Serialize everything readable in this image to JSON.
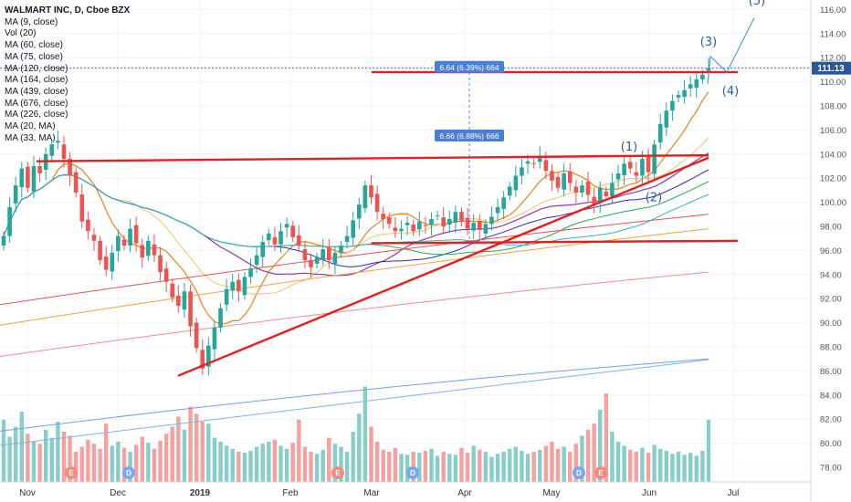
{
  "legend": {
    "title": "WALMART INC, D, Cboe BZX",
    "items": [
      "MA (9, close)",
      "Vol (20)",
      "MA (60, close)",
      "MA (75, close)",
      "MA (120, close)",
      "MA (164, close)",
      "MA (439, close)",
      "MA (676, close)",
      "MA (226, close)",
      "MA (20, MA)",
      "MA (33, MA)"
    ]
  },
  "price_tag": "111.13",
  "measures": [
    {
      "label": "6.64 (6.39%) 664"
    },
    {
      "label": "6.66 (6.88%) 666"
    }
  ],
  "waves": [
    "(1)",
    "(2)",
    "(3)",
    "(4)",
    "(5)"
  ],
  "events": [
    "E",
    "D",
    "E",
    "D",
    "D",
    "E"
  ],
  "colors": {
    "up": "#26a69a",
    "down": "#ef5350",
    "trend": "#e81e1e",
    "price_line": "#2a5aa8",
    "tag": "#2b5797"
  },
  "chart_data": {
    "type": "candlestick",
    "title": "WALMART INC, D, Cboe BZX",
    "ylim": [
      77,
      117
    ],
    "ticks": [
      "78.00",
      "80.00",
      "82.00",
      "84.00",
      "86.00",
      "88.00",
      "90.00",
      "92.00",
      "94.00",
      "96.00",
      "98.00",
      "100.00",
      "102.00",
      "104.00",
      "106.00",
      "108.00",
      "110.00",
      "112.00",
      "114.00",
      "116.00"
    ],
    "x_labels": [
      "Nov",
      "Dec",
      "2019",
      "Feb",
      "Mar",
      "Apr",
      "May",
      "Jun",
      "Jul"
    ],
    "last_price": 111.13,
    "closes": [
      97.2,
      99.6,
      101.4,
      102.8,
      101.2,
      103.0,
      102.4,
      104.0,
      104.8,
      105.1,
      103.6,
      102.2,
      100.8,
      98.4,
      97.6,
      96.8,
      95.2,
      94.4,
      95.8,
      97.2,
      96.4,
      97.8,
      96.6,
      95.4,
      96.8,
      95.6,
      94.2,
      93.4,
      92.1,
      91.4,
      92.6,
      89.7,
      87.9,
      86.2,
      88.1,
      89.6,
      91.2,
      92.8,
      93.4,
      92.6,
      93.8,
      94.5,
      95.6,
      96.7,
      97.4,
      96.5,
      97.6,
      98.2,
      97.1,
      96.4,
      95.2,
      94.6,
      95.4,
      96.1,
      95.2,
      95.8,
      96.4,
      97.2,
      98.5,
      99.8,
      101.4,
      100.4,
      99.2,
      98.6,
      98.2,
      97.6,
      97.8,
      98.3,
      97.6,
      98.4,
      98.1,
      98.6,
      98.9,
      98.0,
      98.6,
      99.2,
      98.4,
      97.8,
      98.3,
      97.7,
      98.2,
      98.8,
      99.6,
      100.4,
      101.3,
      102.2,
      102.9,
      103.4,
      103.2,
      103.8,
      102.6,
      101.8,
      101.2,
      102.4,
      101.6,
      100.8,
      101.4,
      100.6,
      99.8,
      101.2,
      100.5,
      101.6,
      102.4,
      103.2,
      102.8,
      102.2,
      103.6,
      102.5,
      104.8,
      106.5,
      107.6,
      108.4,
      108.9,
      109.3,
      109.8,
      110.2,
      110.6,
      111.13
    ],
    "volume_relative": [
      0.62,
      0.45,
      0.55,
      0.7,
      0.48,
      0.4,
      0.38,
      0.52,
      0.44,
      0.6,
      0.5,
      0.46,
      0.3,
      0.35,
      0.42,
      0.38,
      0.33,
      0.58,
      0.36,
      0.4,
      0.34,
      0.3,
      0.37,
      0.45,
      0.39,
      0.33,
      0.41,
      0.48,
      0.55,
      0.65,
      0.52,
      0.75,
      0.68,
      0.6,
      0.58,
      0.44,
      0.4,
      0.36,
      0.33,
      0.3,
      0.29,
      0.31,
      0.35,
      0.38,
      0.4,
      0.42,
      0.36,
      0.33,
      0.39,
      0.62,
      0.35,
      0.3,
      0.28,
      0.32,
      0.44,
      0.38,
      0.35,
      0.3,
      0.5,
      0.68,
      0.95,
      0.55,
      0.4,
      0.32,
      0.3,
      0.34,
      0.28,
      0.27,
      0.3,
      0.29,
      0.31,
      0.33,
      0.26,
      0.3,
      0.28,
      0.27,
      0.34,
      0.29,
      0.36,
      0.32,
      0.3,
      0.25,
      0.28,
      0.3,
      0.33,
      0.35,
      0.31,
      0.28,
      0.3,
      0.32,
      0.36,
      0.4,
      0.33,
      0.35,
      0.3,
      0.38,
      0.46,
      0.52,
      0.58,
      0.72,
      0.88,
      0.5,
      0.4,
      0.36,
      0.32,
      0.3,
      0.34,
      0.29,
      0.37,
      0.33,
      0.31,
      0.28,
      0.3,
      0.27,
      0.29,
      0.26,
      0.31,
      0.62
    ]
  }
}
